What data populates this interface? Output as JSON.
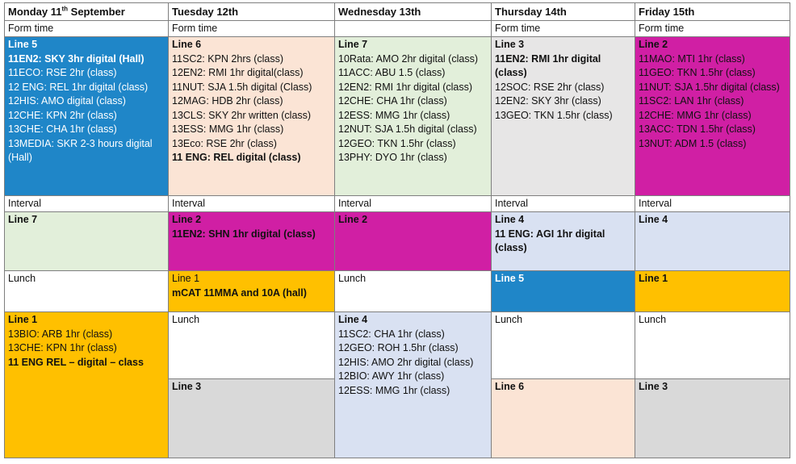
{
  "days": {
    "mon": {
      "title": "Monday 11",
      "sup": "th",
      "rest": " September"
    },
    "tue": "Tuesday 12th",
    "wed": "Wednesday 13th",
    "thu": "Thursday 14th",
    "fri": "Friday 15th"
  },
  "form_time": "Form time",
  "interval": "Interval",
  "lunch": "Lunch",
  "mon": {
    "p1_title": "Line 5",
    "p1": [
      "11EN2: SKY 3hr digital (Hall)",
      "11ECO: RSE 2hr (class)",
      "12 ENG: REL 1hr digital (class)",
      "12HIS: AMO digital (class)",
      "12CHE: KPN 2hr (class)",
      "13CHE: CHA 1hr (class)",
      "13MEDIA: SKR 2-3 hours digital (Hall)"
    ],
    "p2_title": "Line 7",
    "p4_title": "Line 1",
    "p4": [
      "13BIO:  ARB 1hr (class)",
      "13CHE: KPN 1hr (class)",
      "11 ENG REL – digital – class"
    ]
  },
  "tue": {
    "p1_title": "Line 6",
    "p1": [
      "11SC2: KPN 2hrs (class)",
      "12EN2: RMI 1hr digital(class)",
      "11NUT: SJA 1.5h digital (Class)",
      "12MAG: HDB 2hr (class)",
      "13CLS: SKY 2hr written (class)",
      "13ESS: MMG 1hr (class)",
      "13Eco: RSE 2hr (class)",
      "11 ENG: REL digital (class)"
    ],
    "p2_title": "Line 2",
    "p2": [
      "11EN2: SHN 1hr digital (class)"
    ],
    "p3_title": "Line 1",
    "p3": [
      "mCAT 11MMA and 10A (hall)"
    ],
    "p5_title": "Line 3"
  },
  "wed": {
    "p1_title": "Line 7",
    "p1": [
      "10Rata: AMO 2hr digital (class)",
      "11ACC: ABU 1.5 (class)",
      "12EN2: RMI 1hr digital (class)",
      "12CHE: CHA 1hr (class)",
      "12ESS: MMG 1hr (class)",
      "12NUT: SJA 1.5h digital (class)",
      "12GEO: TKN 1.5hr (class)",
      "13PHY: DYO 1hr (class)"
    ],
    "p2_title": "Line 2",
    "p4_title": "Line 4",
    "p4": [
      "11SC2: CHA 1hr (class)",
      "12GEO: ROH 1.5hr (class)",
      "12HIS: AMO 2hr digital (class)",
      "12BIO: AWY 1hr (class)",
      "12ESS: MMG 1hr (class)"
    ]
  },
  "thu": {
    "p1_title": "Line 3",
    "p1": [
      "11EN2: RMI 1hr digital (class)",
      "12SOC: RSE 2hr (class)",
      "12EN2: SKY 3hr (class)",
      "13GEO: TKN 1.5hr (class)"
    ],
    "p2_title": "Line 4",
    "p2": [
      "11 ENG: AGI 1hr digital (class)"
    ],
    "p3_title": "Line 5",
    "p5_title": "Line 6"
  },
  "fri": {
    "p1_title": "Line 2",
    "p1": [
      "11MAO: MTI 1hr (class)",
      "11GEO: TKN 1.5hr (class)",
      "11NUT: SJA 1.5hr digital (class)",
      "11SC2: LAN 1hr (class)",
      "12CHE: MMG 1hr (class)",
      "13ACC: TDN 1.5hr (class)",
      "13NUT: ADM 1.5 (class)"
    ],
    "p2_title": "Line 4",
    "p3_title": "Line 1",
    "p5_title": "Line 3"
  },
  "colors": {
    "blue": "#1f86c8",
    "peach": "#fbe4d5",
    "green": "#e2efda",
    "grey": "#e7e6e6",
    "magenta": "#d01fa4",
    "light_blue": "#d9e1f2",
    "yellow": "#ffc000",
    "dark_grey": "#d9d9d9"
  }
}
